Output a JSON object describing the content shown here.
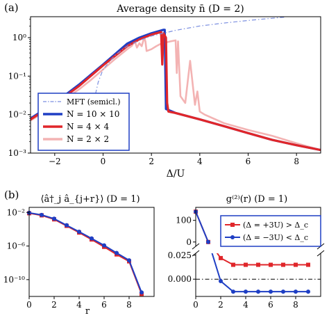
{
  "chart_data": [
    {
      "type": "line",
      "panel_label": "(a)",
      "title": "Average density n̄   (D = 2)",
      "xlabel": "Δ/U",
      "ylabel": "",
      "xlim": [
        -3,
        9
      ],
      "ylim": [
        0.001,
        3.5
      ],
      "yscale": "log",
      "grid": false,
      "legend_position": "lower-left",
      "x_ticks": [
        -2,
        0,
        2,
        4,
        6,
        8
      ],
      "x_tick_labels": [
        "−2",
        "0",
        "2",
        "4",
        "6",
        "8"
      ],
      "y_ticks": [
        0.001,
        0.01,
        0.1,
        1
      ],
      "y_tick_labels": [
        "10⁻³",
        "10⁻²",
        "10⁻¹",
        "10⁰"
      ],
      "series": [
        {
          "name": "MFT (semicl.)",
          "color": "#7b8fe0",
          "style": "dashdot",
          "x": [
            -0.4,
            -0.2,
            0,
            0.5,
            1,
            1.5,
            2,
            3,
            4,
            5,
            6,
            7,
            7.5
          ],
          "y": [
            0.02,
            0.07,
            0.15,
            0.35,
            0.6,
            0.85,
            1.1,
            1.55,
            2.0,
            2.4,
            2.8,
            3.2,
            3.4
          ]
        },
        {
          "name": "N = 10 × 10",
          "color": "#1f3fc4",
          "style": "solid",
          "x": [
            -3,
            -2,
            -1,
            0,
            1,
            1.5,
            2,
            2.5,
            2.55,
            2.6,
            3,
            4,
            5,
            6,
            7,
            8,
            9
          ],
          "y": [
            0.008,
            0.02,
            0.06,
            0.2,
            0.7,
            1.0,
            1.3,
            1.6,
            1.6,
            0.014,
            0.011,
            0.0075,
            0.005,
            0.0033,
            0.0022,
            0.0016,
            0.0012
          ]
        },
        {
          "name": "N = 4 × 4",
          "color": "#e0262a",
          "style": "solid",
          "x": [
            -3,
            -2,
            -1,
            0,
            1,
            1.5,
            2,
            2.4,
            2.45,
            2.5,
            2.6,
            2.65,
            2.7,
            3,
            4,
            5,
            6,
            7,
            8,
            9
          ],
          "y": [
            0.0075,
            0.019,
            0.055,
            0.19,
            0.6,
            0.9,
            1.2,
            1.4,
            0.2,
            1.3,
            1.0,
            0.02,
            0.012,
            0.011,
            0.0075,
            0.005,
            0.0033,
            0.0022,
            0.0016,
            0.0012
          ]
        },
        {
          "name": "N = 2 × 2",
          "color": "#f3b3b3",
          "style": "solid",
          "x": [
            -3,
            -2,
            -1,
            -0.5,
            0,
            0.5,
            1,
            1.2,
            1.3,
            1.4,
            1.5,
            1.6,
            1.7,
            1.75,
            1.8,
            2.0,
            2.2,
            2.4,
            2.6,
            2.8,
            3.0,
            3.05,
            3.1,
            3.2,
            3.4,
            3.6,
            3.8,
            3.9,
            4.0,
            4.2,
            5,
            6,
            7,
            8,
            9
          ],
          "y": [
            0.007,
            0.017,
            0.045,
            0.08,
            0.15,
            0.28,
            0.5,
            0.62,
            0.85,
            0.55,
            0.72,
            0.6,
            1.0,
            0.8,
            0.45,
            0.5,
            0.6,
            0.7,
            0.75,
            0.8,
            0.85,
            0.12,
            0.8,
            0.03,
            0.02,
            0.25,
            0.018,
            0.04,
            0.012,
            0.01,
            0.006,
            0.004,
            0.0028,
            0.0018,
            0.0012
          ]
        }
      ]
    },
    {
      "type": "line",
      "panel_label": "(b)",
      "title": "⟨â†_j â_{j+r}⟩   (D = 1)",
      "xlabel": "r",
      "ylabel": "",
      "xlim": [
        0,
        10
      ],
      "ylim": [
        1e-12,
        0.04
      ],
      "yscale": "log",
      "grid": false,
      "x_ticks": [
        0,
        2,
        4,
        6,
        8
      ],
      "x_tick_labels": [
        "0",
        "2",
        "4",
        "6",
        "8"
      ],
      "y_ticks": [
        0.01,
        1e-06,
        1e-10
      ],
      "y_tick_labels": [
        "10⁻²",
        "10⁻⁶",
        "10⁻¹⁰"
      ],
      "series": [
        {
          "name": "Δ = +3U",
          "color": "#e0262a",
          "x": [
            0,
            1,
            2,
            3,
            4,
            5,
            6,
            7,
            8,
            9
          ],
          "y": [
            0.008,
            0.0045,
            0.0015,
            0.00025,
            4e-05,
            6e-06,
            8e-07,
            1e-07,
            1.5e-08,
            2e-12
          ]
        },
        {
          "name": "Δ = −3U",
          "color": "#1f3fc4",
          "x": [
            0,
            1,
            2,
            3,
            4,
            5,
            6,
            7,
            8,
            9
          ],
          "y": [
            0.009,
            0.005,
            0.0018,
            0.0003,
            5e-05,
            8e-06,
            1.2e-06,
            1.5e-07,
            2e-08,
            3e-12
          ]
        }
      ]
    },
    {
      "type": "line",
      "title": "g⁽²⁾(r)   (D = 1)",
      "xlabel": "",
      "ylabel": "",
      "xlim": [
        0,
        10
      ],
      "broken_y_axis": true,
      "upper_ylim": [
        -20,
        160
      ],
      "lower_ylim": [
        -0.018,
        0.027
      ],
      "upper_y_ticks": [
        0,
        100
      ],
      "upper_y_tick_labels": [
        "0",
        "100"
      ],
      "lower_y_ticks": [
        0.0,
        0.025
      ],
      "lower_y_tick_labels": [
        "0.000",
        "0.025"
      ],
      "x_ticks": [
        0,
        2,
        4,
        6,
        8
      ],
      "x_tick_labels": [
        "0",
        "2",
        "4",
        "6",
        "8"
      ],
      "legend_position": "top-right",
      "reference_line": 0,
      "series": [
        {
          "name": "(Δ = +3U) > Δ_c",
          "color": "#e0262a",
          "marker": "square",
          "x": [
            0,
            1,
            2,
            3,
            4,
            5,
            6,
            7,
            8,
            9
          ],
          "y": [
            140,
            0,
            0.022,
            0.015,
            0.015,
            0.015,
            0.015,
            0.015,
            0.015,
            0.015
          ]
        },
        {
          "name": "(Δ = −3U) < Δ_c",
          "color": "#1f3fc4",
          "marker": "circle",
          "x": [
            0,
            1,
            2,
            3,
            4,
            5,
            6,
            7,
            8,
            9
          ],
          "y": [
            140,
            0,
            -0.002,
            -0.013,
            -0.013,
            -0.013,
            -0.013,
            -0.013,
            -0.013,
            -0.013
          ]
        }
      ]
    }
  ]
}
